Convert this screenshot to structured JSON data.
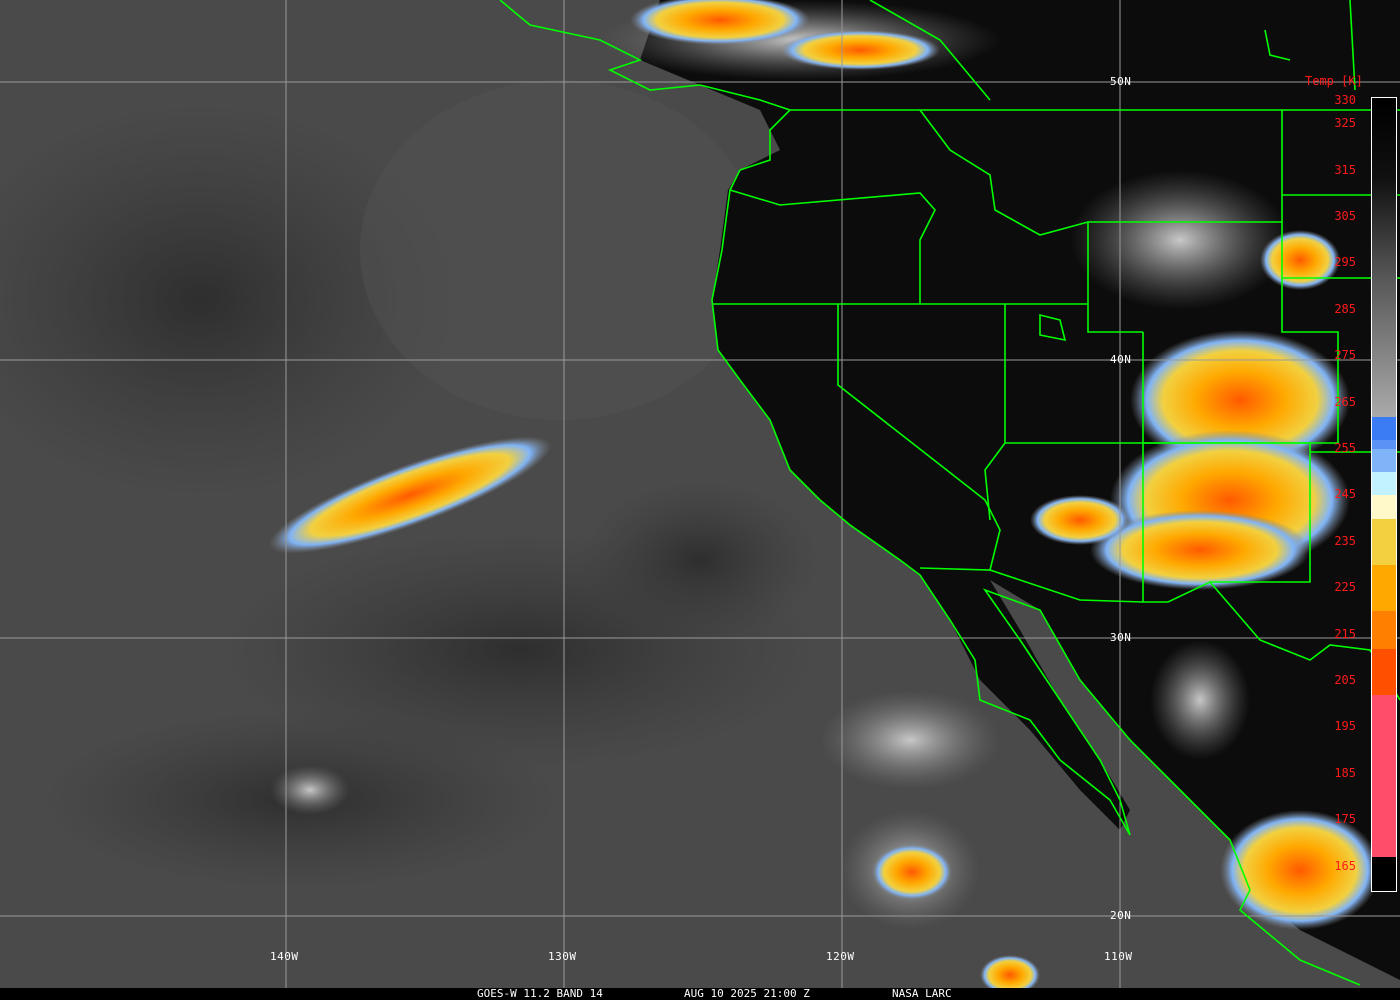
{
  "map": {
    "latitude_labels": [
      "50N",
      "40N",
      "30N",
      "20N"
    ],
    "longitude_labels": [
      "140W",
      "130W",
      "120W",
      "110W"
    ],
    "coastline_color": "#00ff00",
    "grid_color": "#9a9a9a"
  },
  "colorbar": {
    "title": "Temp [K]",
    "ticks": [
      "330",
      "325",
      "315",
      "305",
      "295",
      "285",
      "275",
      "265",
      "255",
      "245",
      "235",
      "225",
      "215",
      "205",
      "195",
      "185",
      "175",
      "165"
    ],
    "segments": [
      {
        "from": 330,
        "to": 262,
        "color": "gradient-black-to-lightgray"
      },
      {
        "from": 262,
        "to": 257,
        "color": "#3b7cf5"
      },
      {
        "from": 257,
        "to": 255,
        "color": "#5a92f5"
      },
      {
        "from": 255,
        "to": 250,
        "color": "#80b4f8"
      },
      {
        "from": 250,
        "to": 245,
        "color": "#c2f2ff"
      },
      {
        "from": 245,
        "to": 240,
        "color": "#fff8c8"
      },
      {
        "from": 240,
        "to": 230,
        "color": "#f2d040"
      },
      {
        "from": 230,
        "to": 220,
        "color": "#ffa800"
      },
      {
        "from": 220,
        "to": 212,
        "color": "#ff8000"
      },
      {
        "from": 212,
        "to": 202,
        "color": "#ff5000"
      },
      {
        "from": 202,
        "to": 167,
        "color": "#ff4d6a"
      },
      {
        "from": 167,
        "to": 165,
        "color": "#000000"
      }
    ]
  },
  "footer": {
    "satellite": "GOES-W 11.2 BAND 14",
    "datetime": "AUG 10 2025 21:00 Z",
    "source": "NASA LARC"
  }
}
